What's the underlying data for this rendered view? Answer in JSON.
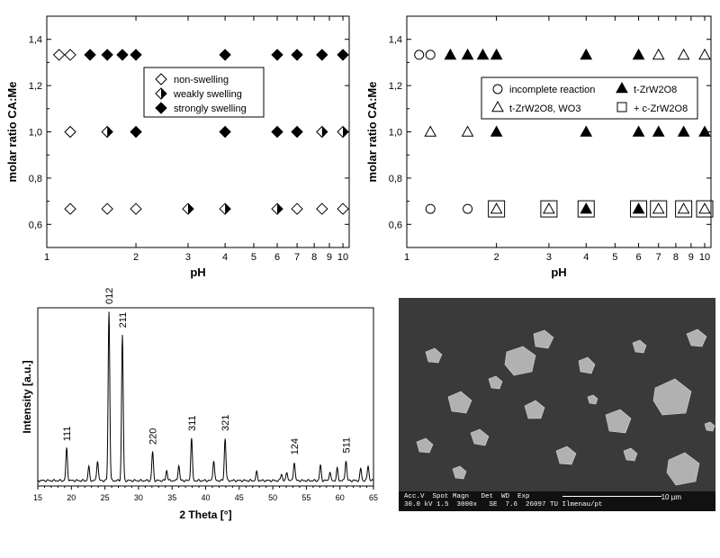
{
  "chart_data": [
    {
      "type": "scatter",
      "xlabel": "pH",
      "ylabel": "molar ratio CA:Me",
      "xscale": "log",
      "xlim": [
        1,
        10.5
      ],
      "ylim": [
        0.5,
        1.5
      ],
      "xticks": [
        "1",
        "2",
        "3",
        "4",
        "5",
        "6",
        "7",
        "8",
        "9",
        "10"
      ],
      "yticks": [
        "0,6",
        "0,8",
        "1,0",
        "1,2",
        "1,4"
      ],
      "legend_position": "center-right",
      "series": [
        {
          "name": "non-swelling",
          "marker": "open-diamond",
          "points": [
            [
              1.1,
              1.333
            ],
            [
              1.2,
              1.333
            ],
            [
              1.2,
              1.0
            ],
            [
              1.2,
              0.667
            ],
            [
              1.6,
              0.667
            ],
            [
              2.0,
              0.667
            ],
            [
              7.0,
              0.667
            ],
            [
              8.5,
              0.667
            ],
            [
              10.0,
              0.667
            ]
          ]
        },
        {
          "name": "weakly swelling",
          "marker": "half-diamond",
          "points": [
            [
              1.6,
              1.0
            ],
            [
              3.0,
              0.667
            ],
            [
              4.0,
              0.667
            ],
            [
              6.0,
              0.667
            ],
            [
              8.5,
              1.0
            ],
            [
              10.0,
              1.0
            ]
          ]
        },
        {
          "name": "strongly swelling",
          "marker": "filled-diamond",
          "points": [
            [
              1.4,
              1.333
            ],
            [
              1.6,
              1.333
            ],
            [
              1.8,
              1.333
            ],
            [
              2.0,
              1.333
            ],
            [
              4.0,
              1.333
            ],
            [
              6.0,
              1.333
            ],
            [
              7.0,
              1.333
            ],
            [
              8.5,
              1.333
            ],
            [
              10.0,
              1.333
            ],
            [
              2.0,
              1.0
            ],
            [
              4.0,
              1.0
            ],
            [
              6.0,
              1.0
            ],
            [
              7.0,
              1.0
            ]
          ]
        }
      ]
    },
    {
      "type": "scatter",
      "xlabel": "pH",
      "ylabel": "molar ratio CA:Me",
      "xscale": "log",
      "xlim": [
        1,
        10.5
      ],
      "ylim": [
        0.5,
        1.5
      ],
      "xticks": [
        "1",
        "2",
        "3",
        "4",
        "5",
        "6",
        "7",
        "8",
        "9",
        "10"
      ],
      "yticks": [
        "0,6",
        "0,8",
        "1,0",
        "1,2",
        "1,4"
      ],
      "legend_position": "center-right",
      "legend_labels": {
        "circle": "incomplete reaction",
        "filled_triangle": "t-ZrW2O8",
        "triangle": "t-ZrW2O8, WO3",
        "square": "+ c-ZrW2O8"
      },
      "series": [
        {
          "name": "incomplete reaction",
          "marker": "open-circle",
          "points": [
            [
              1.1,
              1.333
            ],
            [
              1.2,
              1.333
            ],
            [
              1.2,
              0.667
            ],
            [
              1.6,
              0.667
            ]
          ]
        },
        {
          "name": "t-ZrW2O8",
          "marker": "filled-triangle",
          "points": [
            [
              1.4,
              1.333
            ],
            [
              1.6,
              1.333
            ],
            [
              1.8,
              1.333
            ],
            [
              2.0,
              1.333
            ],
            [
              4.0,
              1.333
            ],
            [
              6.0,
              1.333
            ],
            [
              2.0,
              1.0
            ],
            [
              4.0,
              1.0
            ],
            [
              6.0,
              1.0
            ],
            [
              7.0,
              1.0
            ],
            [
              8.5,
              1.0
            ],
            [
              10.0,
              1.0
            ],
            [
              4.0,
              0.667
            ],
            [
              6.0,
              0.667
            ]
          ]
        },
        {
          "name": "t-ZrW2O8, WO3",
          "marker": "open-triangle",
          "points": [
            [
              7.0,
              1.333
            ],
            [
              8.5,
              1.333
            ],
            [
              10.0,
              1.333
            ],
            [
              1.2,
              1.0
            ],
            [
              1.6,
              1.0
            ],
            [
              2.0,
              0.667
            ],
            [
              3.0,
              0.667
            ],
            [
              7.0,
              0.667
            ],
            [
              8.5,
              0.667
            ],
            [
              10.0,
              0.667
            ]
          ]
        },
        {
          "name": "+ c-ZrW2O8",
          "marker": "open-square",
          "points": [
            [
              2.0,
              0.667
            ],
            [
              3.0,
              0.667
            ],
            [
              4.0,
              0.667
            ],
            [
              6.0,
              0.667
            ],
            [
              7.0,
              0.667
            ],
            [
              8.5,
              0.667
            ],
            [
              10.0,
              0.667
            ]
          ]
        }
      ]
    },
    {
      "type": "line",
      "xlabel": "2 Theta [°]",
      "ylabel": "Intensity [a.u.]",
      "xlim": [
        15,
        65
      ],
      "xticks": [
        "15",
        "20",
        "25",
        "30",
        "35",
        "40",
        "45",
        "50",
        "55",
        "60",
        "65"
      ],
      "peaks": [
        [
          19.3,
          0.19
        ],
        [
          22.6,
          0.08
        ],
        [
          23.9,
          0.12
        ],
        [
          25.6,
          1.0
        ],
        [
          27.6,
          0.86
        ],
        [
          32.1,
          0.17
        ],
        [
          34.2,
          0.06
        ],
        [
          36.0,
          0.09
        ],
        [
          37.9,
          0.25
        ],
        [
          41.2,
          0.12
        ],
        [
          42.9,
          0.25
        ],
        [
          47.6,
          0.05
        ],
        [
          51.3,
          0.04
        ],
        [
          52.1,
          0.05
        ],
        [
          53.2,
          0.11
        ],
        [
          57.1,
          0.09
        ],
        [
          58.5,
          0.05
        ],
        [
          59.6,
          0.07
        ],
        [
          60.9,
          0.12
        ],
        [
          63.1,
          0.07
        ],
        [
          64.2,
          0.09
        ]
      ],
      "annotations": [
        {
          "text": "111",
          "x": 19.3
        },
        {
          "text": "012",
          "x": 25.6
        },
        {
          "text": "211",
          "x": 27.6
        },
        {
          "text": "220",
          "x": 32.1
        },
        {
          "text": "311",
          "x": 37.9
        },
        {
          "text": "321",
          "x": 42.9
        },
        {
          "text": "124",
          "x": 53.2
        },
        {
          "text": "511",
          "x": 60.9
        }
      ]
    }
  ],
  "sem": {
    "row1": "Acc.V  Spot Magn   Det  WD  Exp",
    "row2": "30.0 kV 1.5  3000x   SE  7.6  26097 TU Ilmenau/pt",
    "scale_label": "10 µm"
  }
}
